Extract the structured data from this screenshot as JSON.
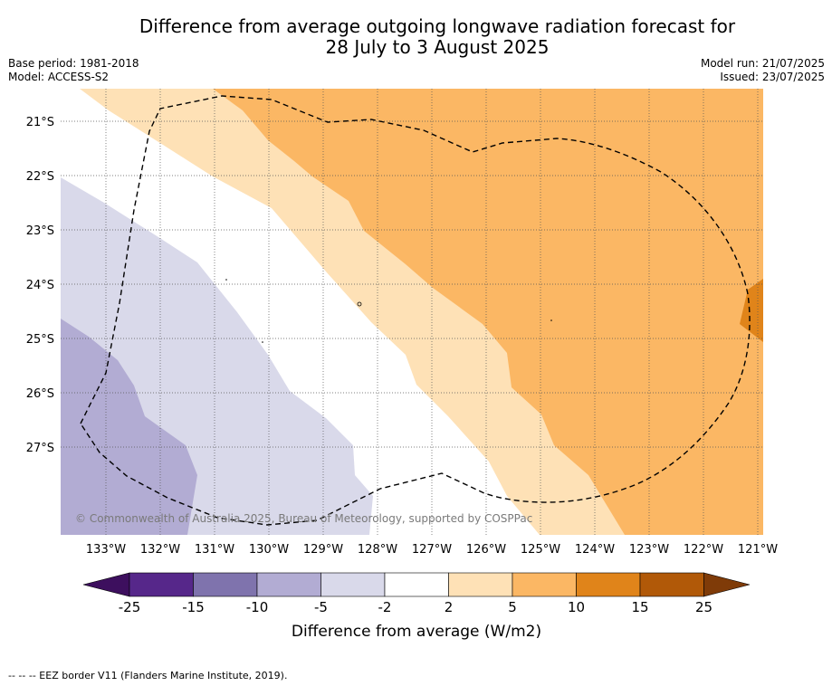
{
  "title_line1": "Difference from average outgoing longwave radiation forecast for",
  "title_line2": "28 July to 3 August 2025",
  "base_period": "Base period: 1981-2018",
  "model": "Model: ACCESS-S2",
  "model_run": "Model run: 21/07/2025",
  "issued": "Issued: 23/07/2025",
  "copyright": "© Commonwealth of Australia 2025, Bureau of Meteorology, supported by COSPPac",
  "footer_note": "--  --  -- EEZ border V11 (Flanders Marine Institute, 2019).",
  "map": {
    "lat_labels": [
      "21°S",
      "22°S",
      "23°S",
      "24°S",
      "25°S",
      "26°S",
      "27°S"
    ],
    "lon_labels": [
      "133°W",
      "132°W",
      "131°W",
      "130°W",
      "129°W",
      "128°W",
      "127°W",
      "126°W",
      "125°W",
      "124°W",
      "123°W",
      "122°W",
      "121°W"
    ]
  },
  "colorbar": {
    "label": "Difference from average (W/m2)",
    "ticks": [
      "-25",
      "-15",
      "-10",
      "-5",
      "-2",
      "2",
      "5",
      "10",
      "15",
      "25"
    ],
    "colors": [
      "#3d0f5e",
      "#56278a",
      "#7f73ad",
      "#b2acd3",
      "#d9d9ea",
      "#ffffff",
      "#fee1b6",
      "#fbb764",
      "#e0841a",
      "#b15908",
      "#7f3b08"
    ]
  }
}
